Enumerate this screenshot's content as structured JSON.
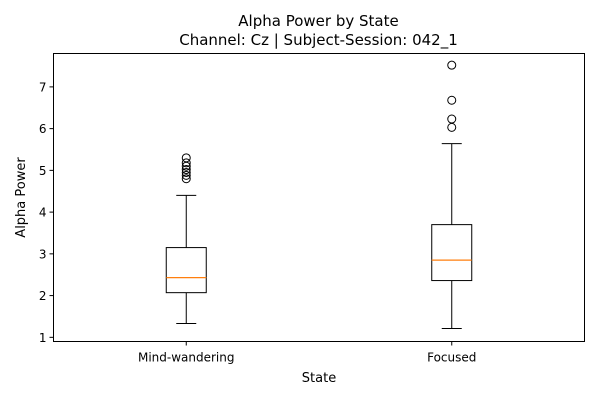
{
  "chart_data": {
    "type": "boxplot",
    "title": "Alpha Power by State",
    "subtitle": "Channel: Cz | Subject-Session: 042_1",
    "xlabel": "State",
    "ylabel": "Alpha Power",
    "ylim": [
      0.9,
      7.8
    ],
    "yticks": [
      1,
      2,
      3,
      4,
      5,
      6,
      7
    ],
    "grid": false,
    "categories": [
      "Mind-wandering",
      "Focused"
    ],
    "boxes": [
      {
        "whisker_low": 1.33,
        "q1": 2.07,
        "median": 2.43,
        "q3": 3.15,
        "whisker_high": 4.4,
        "outliers": [
          4.8,
          4.88,
          4.95,
          5.02,
          5.1,
          5.18,
          5.3
        ]
      },
      {
        "whisker_low": 1.21,
        "q1": 2.36,
        "median": 2.85,
        "q3": 3.7,
        "whisker_high": 5.64,
        "outliers": [
          6.03,
          6.23,
          6.68,
          7.52
        ]
      }
    ],
    "colors": {
      "box": "#000000",
      "median": "#ff7f0e",
      "outlier": "#000000"
    }
  }
}
